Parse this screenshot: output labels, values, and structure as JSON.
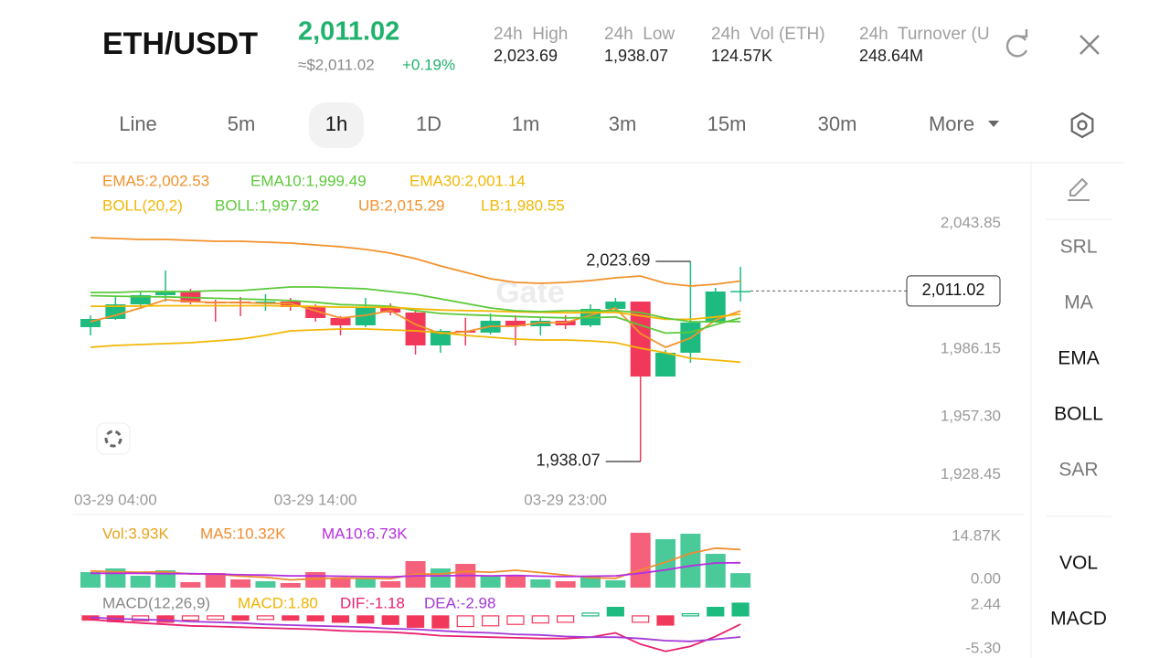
{
  "header": {
    "pair": "ETH/USDT",
    "price": "2,011.02",
    "approx": "≈$2,011.02",
    "change": "+0.19%",
    "stats": [
      {
        "label": "24h  High",
        "value": "2,023.69"
      },
      {
        "label": "24h  Low",
        "value": "1,938.07"
      },
      {
        "label": "24h  Vol (ETH)",
        "value": "124.57K"
      },
      {
        "label": "24h  Turnover (U",
        "value": "248.64M"
      }
    ]
  },
  "timeframes": [
    "Line",
    "5m",
    "1h",
    "1D",
    "1m",
    "3m",
    "15m",
    "30m",
    "More"
  ],
  "active_timeframe": 2,
  "tools": [
    "SRL",
    "MA",
    "EMA",
    "BOLL",
    "SAR",
    "VOL",
    "MACD"
  ],
  "active_tools": [
    2,
    3,
    5,
    6
  ],
  "chart_data": [
    {
      "type": "candlestick",
      "watermark": "Gate",
      "params_label": "BOLL(20,2)",
      "params_color": "#f2b705",
      "up_color": "#1dbb7f",
      "down_color": "#f2385a",
      "categories": [
        null,
        "03-29 04:00",
        null,
        null,
        null,
        null,
        null,
        null,
        null,
        "03-29 14:00",
        null,
        null,
        null,
        null,
        null,
        null,
        null,
        null,
        null,
        "03-29 23:00",
        null,
        null,
        null,
        null,
        null,
        null,
        null
      ],
      "open": [
        1995.54,
        1999.06,
        2005.32,
        2009.23,
        2010.79,
        2006.49,
        2006.49,
        2005.71,
        2006.49,
        2004.14,
        1999.45,
        1996.32,
        2004.14,
        2001.8,
        1987.72,
        1993.98,
        1993.2,
        1998.28,
        1995.93,
        1998.28,
        1996.32,
        2003.36,
        2006.49,
        1974.43,
        1984.6,
        1997.5,
        2010.79
      ],
      "high": [
        2000.62,
        2008.44,
        2010.4,
        2019.78,
        2011.96,
        2007.27,
        2008.44,
        2009.62,
        2008.05,
        2005.32,
        2000.23,
        2008.05,
        2005.71,
        2002.58,
        1994.76,
        1999.45,
        2001.41,
        2000.62,
        1999.84,
        2000.62,
        2005.32,
        2008.05,
        2006.49,
        1985.77,
        2023.69,
        2012.35,
        2021.34
      ],
      "low": [
        1992.02,
        1998.67,
        2003.36,
        2006.49,
        2005.32,
        1997.89,
        2000.23,
        2002.58,
        2002.58,
        1997.89,
        1992.02,
        1995.54,
        2000.62,
        1983.82,
        1984.6,
        1987.72,
        1992.42,
        1987.72,
        1992.02,
        1994.76,
        1995.54,
        2002.58,
        1938.07,
        1974.43,
        1980.3,
        1997.5,
        2006.49
      ],
      "close": [
        1999.06,
        2005.32,
        2009.23,
        2010.79,
        2006.1,
        2005.71,
        2005.71,
        2006.49,
        2004.14,
        1999.45,
        1996.32,
        2004.14,
        2001.8,
        1987.72,
        1993.98,
        1993.2,
        1998.28,
        1995.93,
        1998.28,
        1996.32,
        2003.36,
        2006.49,
        1974.43,
        1984.6,
        1997.5,
        2010.79,
        2011.02
      ],
      "series": [
        {
          "name": "EMA5:2,002.53",
          "color": "#f2922b",
          "values": [
            1997.89,
            2000.62,
            2003.75,
            2007.27,
            2006.49,
            2006.1,
            2006.1,
            2005.71,
            2005.71,
            2002.58,
            1999.45,
            2000.62,
            2002.58,
            1996.72,
            1992.81,
            1993.59,
            1995.93,
            1995.93,
            1997.5,
            1997.5,
            2000.62,
            2003.75,
            1992.81,
            1986.94,
            1990.85,
            1998.67,
            2002.53
          ]
        },
        {
          "name": "EMA10:1,999.49",
          "color": "#5cc93a",
          "values": [
            2009.0,
            2008.8,
            2008.6,
            2008.5,
            2008.2,
            2007.9,
            2007.6,
            2007.3,
            2006.9,
            2006.2,
            2005.2,
            2004.9,
            2004.5,
            2002.6,
            2001.4,
            2000.9,
            2000.5,
            2000.1,
            1999.8,
            1999.5,
            1999.6,
            1999.9,
            1996.4,
            1993.0,
            1993.4,
            1996.6,
            1999.49
          ]
        },
        {
          "name": "EMA30:2,001.14",
          "color": "#f2b705",
          "values": [
            2004.5,
            2004.5,
            2004.6,
            2004.7,
            2004.7,
            2004.7,
            2004.7,
            2004.7,
            2004.6,
            2004.4,
            2004.1,
            2004.1,
            2004.0,
            2003.4,
            2002.9,
            2002.6,
            2002.4,
            2002.1,
            2001.9,
            2001.7,
            2001.8,
            2001.9,
            2000.4,
            1998.9,
            1998.9,
            1999.9,
            2001.14
          ]
        },
        {
          "name": "BOLL:1,997.92",
          "color": "#5cc93a",
          "values": [
            2010.4,
            2010.4,
            2010.79,
            2010.79,
            2010.79,
            2011.18,
            2011.18,
            2011.96,
            2012.74,
            2012.74,
            2012.35,
            2011.96,
            2010.79,
            2009.62,
            2007.66,
            2005.71,
            2003.75,
            2002.58,
            2002.19,
            2002.58,
            2002.58,
            2002.58,
            2001.8,
            1999.45,
            1997.89,
            1997.89,
            1997.92
          ]
        },
        {
          "name": "UB:2,015.29",
          "color": "#f2922b",
          "values": [
            2033.85,
            2033.46,
            2033.07,
            2033.07,
            2032.68,
            2032.29,
            2032.29,
            2031.9,
            2031.51,
            2030.73,
            2029.95,
            2028.78,
            2027.21,
            2024.86,
            2021.74,
            2019.0,
            2016.26,
            2014.7,
            2014.31,
            2014.7,
            2015.48,
            2016.65,
            2017.44,
            2014.31,
            2013.13,
            2013.92,
            2015.29
          ]
        },
        {
          "name": "LB:1,980.55",
          "color": "#f2b705",
          "values": [
            1986.94,
            1987.72,
            1988.11,
            1988.5,
            1988.89,
            1989.67,
            1990.45,
            1992.02,
            1993.98,
            1994.37,
            1994.76,
            1994.76,
            1994.37,
            1993.98,
            1993.2,
            1992.02,
            1991.24,
            1990.45,
            1990.06,
            1990.06,
            1989.67,
            1988.89,
            1986.55,
            1984.6,
            1982.25,
            1981.47,
            1980.55
          ]
        }
      ],
      "ylim": [
        1928.45,
        2043.85
      ],
      "yticks": [
        {
          "value": 2043.85,
          "label": "2,043.85"
        },
        {
          "value": 1986.15,
          "label": "1,986.15"
        },
        {
          "value": 1957.3,
          "label": "1,957.30"
        },
        {
          "value": 1928.45,
          "label": "1,928.45"
        }
      ],
      "high_marker": {
        "value": 2023.69,
        "label": "2,023.69"
      },
      "low_marker": {
        "value": 1938.07,
        "label": "1,938.07"
      },
      "last_price": {
        "value": 2011.02,
        "label": "2,011.02"
      }
    },
    {
      "type": "bar",
      "series": [
        {
          "name": "Vol:3.93K",
          "type": "bar",
          "color": "#e8a317",
          "values": [
            4213,
            5204,
            3222,
            4709,
            1487,
            3965,
            2230,
            1735,
            1239,
            4213,
            2726,
            2478,
            1735,
            7187,
            5204,
            6443,
            3222,
            3222,
            2230,
            1735,
            3222,
            1983,
            14870,
            13134,
            14621,
            9167,
            3930
          ]
        },
        {
          "name": "MA5:10.32K",
          "color": "#f08c2e",
          "values": [
            4500,
            4300,
            4200,
            4300,
            3700,
            3700,
            3100,
            2800,
            2100,
            2400,
            2600,
            2500,
            2400,
            3700,
            3700,
            4400,
            4200,
            4700,
            4100,
            3400,
            2700,
            2500,
            4800,
            6900,
            9300,
            10700,
            10320
          ]
        },
        {
          "name": "MA10:6.73K",
          "color": "#b62ee0",
          "values": [
            3900,
            3900,
            3900,
            3800,
            3800,
            3700,
            3500,
            3400,
            3200,
            3200,
            3100,
            3000,
            2900,
            3200,
            3200,
            3300,
            3200,
            3300,
            3100,
            3000,
            3100,
            3200,
            3900,
            4800,
            5900,
            6700,
            6730
          ]
        }
      ],
      "ylim": [
        0,
        14870
      ],
      "yticks": [
        {
          "value": 14870,
          "label": "14.87K"
        },
        {
          "value": 0,
          "label": "0.00"
        }
      ]
    },
    {
      "type": "bar",
      "title": "MACD(12,26,9)",
      "series": [
        {
          "name": "MACD:1.80",
          "type": "bar",
          "color": "#f0b400",
          "values": [
            -0.6,
            -0.8,
            -0.7,
            -0.9,
            -0.6,
            -0.5,
            -0.6,
            -0.5,
            -0.6,
            -0.7,
            -0.9,
            -1.0,
            -1.2,
            -1.6,
            -1.7,
            -1.5,
            -1.4,
            -1.2,
            -1.0,
            -0.9,
            0.4,
            1.2,
            -0.9,
            -1.3,
            0.3,
            1.2,
            1.8
          ]
        },
        {
          "name": "DIF:-1.18",
          "color": "#e8216f",
          "values": [
            -0.5,
            -0.8,
            -1.0,
            -1.2,
            -1.4,
            -1.5,
            -1.6,
            -1.7,
            -1.8,
            -1.9,
            -2.1,
            -2.2,
            -2.3,
            -2.5,
            -2.8,
            -2.9,
            -3.0,
            -3.1,
            -3.2,
            -3.2,
            -3.0,
            -2.4,
            -4.0,
            -5.0,
            -4.3,
            -2.9,
            -1.18
          ]
        },
        {
          "name": "DEA:-2.98",
          "color": "#a23ad8",
          "values": [
            -0.2,
            -0.4,
            -0.5,
            -0.6,
            -0.8,
            -0.9,
            -1.0,
            -1.2,
            -1.3,
            -1.4,
            -1.5,
            -1.6,
            -1.8,
            -1.9,
            -2.1,
            -2.3,
            -2.4,
            -2.6,
            -2.7,
            -2.9,
            -3.0,
            -3.0,
            -3.2,
            -3.5,
            -3.6,
            -3.3,
            -2.98
          ]
        }
      ],
      "ylim": [
        -5.3,
        2.44
      ],
      "yticks": [
        2.44,
        {
          "value": -5.3,
          "label": "-5.30"
        }
      ]
    }
  ]
}
